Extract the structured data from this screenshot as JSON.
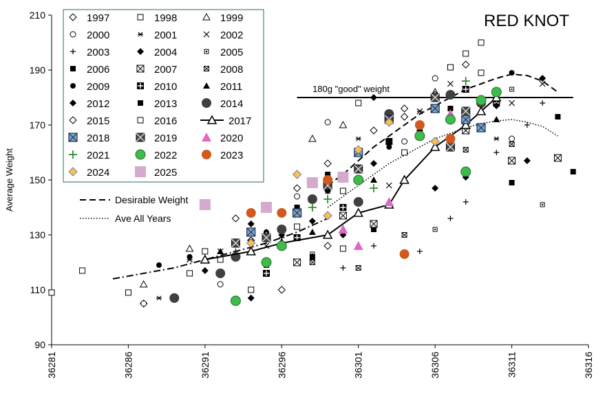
{
  "chart_data": {
    "type": "scatter",
    "title": "RED KNOT",
    "xlabel": "",
    "ylabel": "Average Weight",
    "xlim": [
      36281,
      36316
    ],
    "ylim": [
      90,
      210
    ],
    "xticks": [
      "36281",
      "36286",
      "36291",
      "36296",
      "36301",
      "36306",
      "36311",
      "36316"
    ],
    "yticks": [
      "90",
      "110",
      "130",
      "150",
      "170",
      "190",
      "210"
    ],
    "reference_line": {
      "label": "180g \"good\" weight",
      "y": 180,
      "x": [
        36297,
        36315
      ]
    },
    "trend_lines": [
      {
        "name": "Desirable Weight",
        "style": "dash",
        "x": [
          36299,
          36300,
          36301,
          36302,
          36303,
          36304,
          36305,
          36306,
          36307,
          36308,
          36309,
          36310,
          36311,
          36312,
          36313,
          36314
        ],
        "y": [
          148,
          152,
          157,
          162,
          166,
          170,
          174,
          177,
          180,
          183,
          185,
          187,
          188.5,
          188,
          186,
          182
        ]
      },
      {
        "name": "Ave All Years",
        "style": "dot",
        "x": [
          36299,
          36300,
          36301,
          36302,
          36303,
          36304,
          36305,
          36306,
          36307,
          36308,
          36309,
          36310,
          36311,
          36312,
          36313,
          36314
        ],
        "y": [
          140,
          144,
          148,
          152,
          156,
          159,
          162,
          165,
          167,
          169,
          170.5,
          171.5,
          172,
          171,
          169.5,
          166
        ]
      },
      {
        "name": "",
        "style": "dashdot",
        "x": [
          36285,
          36287,
          36289,
          36291,
          36293,
          36295,
          36297,
          36299
        ],
        "y": [
          114,
          116,
          118,
          121,
          124,
          127,
          131,
          136
        ]
      }
    ],
    "series": [
      {
        "name": "1997",
        "marker": "diamond-open",
        "color": "#000000",
        "x": [
          36287,
          36294,
          36296,
          36299,
          36304,
          36309
        ],
        "y": [
          105,
          128,
          110,
          126,
          173,
          179
        ]
      },
      {
        "name": "1998",
        "marker": "square-open",
        "color": "#000000",
        "x": [
          36281,
          36283,
          36286,
          36290,
          36292,
          36294,
          36297,
          36300,
          36301,
          36307,
          36308,
          36309
        ],
        "y": [
          109,
          117,
          109,
          116,
          121,
          110,
          133,
          125,
          178,
          191,
          196,
          200
        ]
      },
      {
        "name": "1999",
        "marker": "triangle-open",
        "color": "#000000",
        "x": [
          36287,
          36290,
          36298,
          36300,
          36306,
          36310
        ],
        "y": [
          112,
          125,
          165,
          170,
          182,
          179
        ]
      },
      {
        "name": "2000",
        "marker": "circle-open",
        "color": "#000000",
        "x": [
          36287,
          36292,
          36297,
          36299,
          36304,
          36306,
          36311
        ],
        "y": [
          105,
          112,
          144,
          171,
          164,
          187,
          165
        ]
      },
      {
        "name": "2001",
        "marker": "asterisk",
        "color": "#000000",
        "x": [
          36288,
          36290,
          36294,
          36297,
          36301,
          36305,
          36310
        ],
        "y": [
          107,
          121,
          128,
          137,
          165,
          175,
          165
        ]
      },
      {
        "name": "2002",
        "marker": "x",
        "color": "#000000",
        "x": [
          36290,
          36292,
          36295,
          36299,
          36303,
          36305,
          36307,
          36311,
          36313
        ],
        "y": [
          121,
          124,
          126,
          146,
          148,
          175,
          185,
          178,
          185
        ]
      },
      {
        "name": "2003",
        "marker": "plus",
        "color": "#000000",
        "x": [
          36293,
          36296,
          36300,
          36302,
          36305,
          36307,
          36308,
          36310,
          36312,
          36313
        ],
        "y": [
          124,
          129,
          118,
          126,
          124,
          136,
          142,
          160,
          170,
          178
        ]
      },
      {
        "name": "2004",
        "marker": "diamond",
        "color": "#000000",
        "x": [
          36294,
          36298,
          36300,
          36302,
          36306,
          36308
        ],
        "y": [
          107,
          135,
          130,
          180,
          147,
          151
        ]
      },
      {
        "name": "2005",
        "marker": "square-dot",
        "color": "#000000",
        "x": [
          36298,
          36302,
          36306,
          36311,
          36313
        ],
        "y": [
          123,
          132,
          132,
          183,
          141
        ]
      },
      {
        "name": "2006",
        "marker": "square",
        "color": "#000000",
        "x": [
          36297,
          36299,
          36302,
          36305,
          36307,
          36311,
          36314,
          36315
        ],
        "y": [
          140,
          152,
          132,
          170,
          165,
          149,
          173,
          153
        ]
      },
      {
        "name": "2007",
        "marker": "square-x",
        "color": "#000000",
        "x": [
          36297,
          36300,
          36302,
          36305,
          36308,
          36311,
          36314
        ],
        "y": [
          120,
          137,
          134,
          166,
          168,
          157,
          158
        ]
      },
      {
        "name": "2008",
        "marker": "square-x-small",
        "color": "#000000",
        "x": [
          36298,
          36301,
          36304,
          36308,
          36311
        ],
        "y": [
          120,
          118,
          130,
          161,
          163
        ]
      },
      {
        "name": "2009",
        "marker": "circle",
        "color": "#000000",
        "x": [
          36288,
          36290,
          36295,
          36299,
          36303,
          36306,
          36310,
          36311
        ],
        "y": [
          119,
          122,
          131,
          148,
          162,
          176,
          178,
          189
        ]
      },
      {
        "name": "2010",
        "marker": "square-plus",
        "color": "#000000",
        "x": [
          36293,
          36295,
          36297,
          36300,
          36303,
          36305,
          36308,
          36310
        ],
        "y": [
          122,
          116,
          129,
          140,
          164,
          170,
          183,
          178
        ]
      },
      {
        "name": "2011",
        "marker": "triangle",
        "color": "#000000",
        "x": [
          36292,
          36295,
          36298,
          36302,
          36305,
          36307,
          36309,
          36310
        ],
        "y": [
          124,
          131,
          131,
          150,
          167,
          174,
          178,
          172
        ]
      },
      {
        "name": "2012",
        "marker": "diamond",
        "color": "#000000",
        "x": [
          36291,
          36294,
          36296,
          36299,
          36302,
          36305,
          36308,
          36310,
          36312,
          36313
        ],
        "y": [
          117,
          134,
          130,
          146,
          156,
          168,
          170,
          177,
          157,
          187
        ]
      },
      {
        "name": "2013",
        "marker": "square",
        "color": "#000000",
        "x": [
          36295,
          36297,
          36298,
          36299,
          36301,
          36303,
          36307
        ],
        "y": [
          119,
          139,
          122,
          148,
          142,
          164,
          176
        ]
      },
      {
        "name": "2014",
        "marker": "circle-filled-gray",
        "color": "#404040",
        "x": [
          36289,
          36292,
          36293,
          36296,
          36298,
          36301,
          36303,
          36307,
          36309
        ],
        "y": [
          107,
          116,
          122,
          132,
          143,
          142,
          174,
          181,
          178
        ]
      },
      {
        "name": "2015",
        "marker": "diamond-open",
        "color": "#000000",
        "x": [
          36293,
          36295,
          36297,
          36299,
          36302,
          36304,
          36306,
          36308
        ],
        "y": [
          136,
          130,
          147,
          156,
          168,
          176,
          181,
          192
        ]
      },
      {
        "name": "2016",
        "marker": "square-open",
        "color": "#000000",
        "x": [
          36291,
          36294,
          36297,
          36300,
          36304,
          36307,
          36309
        ],
        "y": [
          124,
          131,
          138,
          146,
          160,
          191,
          189
        ]
      },
      {
        "name": "2017",
        "marker": "triangle-open-line",
        "color": "#000000",
        "x": [
          36291,
          36294,
          36296,
          36299,
          36301,
          36303,
          36304,
          36306,
          36308,
          36309,
          36310
        ],
        "y": [
          121,
          124,
          127,
          130,
          138,
          141,
          150,
          162,
          170,
          175,
          180
        ]
      },
      {
        "name": "2018",
        "marker": "square-x-blue",
        "color": "#7ba7c9",
        "x": [
          36294,
          36297,
          36301,
          36303,
          36306,
          36308,
          36309
        ],
        "y": [
          131,
          138,
          160,
          172,
          176,
          172,
          169
        ]
      },
      {
        "name": "2019",
        "marker": "square-x-gray",
        "color": "#444444",
        "x": [
          36293,
          36295,
          36299,
          36301,
          36303,
          36306,
          36307,
          36308
        ],
        "y": [
          127,
          129,
          148,
          154,
          172,
          180,
          162,
          175
        ]
      },
      {
        "name": "2020",
        "marker": "triangle-magenta",
        "color": "#e066c8",
        "x": [
          36300,
          36301,
          36303,
          36307
        ],
        "y": [
          132,
          126,
          142,
          174
        ]
      },
      {
        "name": "2021",
        "marker": "plus-green",
        "color": "#2f8a2f",
        "x": [
          36298,
          36299,
          36302,
          36308
        ],
        "y": [
          140,
          143,
          147,
          186
        ]
      },
      {
        "name": "2022",
        "marker": "circle-green",
        "color": "#3dbb4b",
        "x": [
          36293,
          36295,
          36296,
          36301,
          36305,
          36307,
          36308,
          36309,
          36310
        ],
        "y": [
          106,
          120,
          126,
          150,
          166,
          172,
          153,
          179,
          182
        ]
      },
      {
        "name": "2023",
        "marker": "circle-orange",
        "color": "#d0591d",
        "x": [
          36294,
          36296,
          36299,
          36304,
          36305,
          36307
        ],
        "y": [
          138,
          138,
          150,
          123,
          170,
          165
        ]
      },
      {
        "name": "2024",
        "marker": "diamond-yellow",
        "color": "#f2c744",
        "x": [
          36294,
          36297,
          36299,
          36301,
          36303,
          36306
        ],
        "y": [
          127,
          152,
          137,
          161,
          171,
          164
        ]
      },
      {
        "name": "2025",
        "marker": "square-pink",
        "color": "#d5aacd",
        "x": [
          36291,
          36295,
          36298,
          36300
        ],
        "y": [
          141,
          140,
          149,
          151
        ]
      }
    ],
    "grid": false,
    "legend_position": "top-left"
  }
}
